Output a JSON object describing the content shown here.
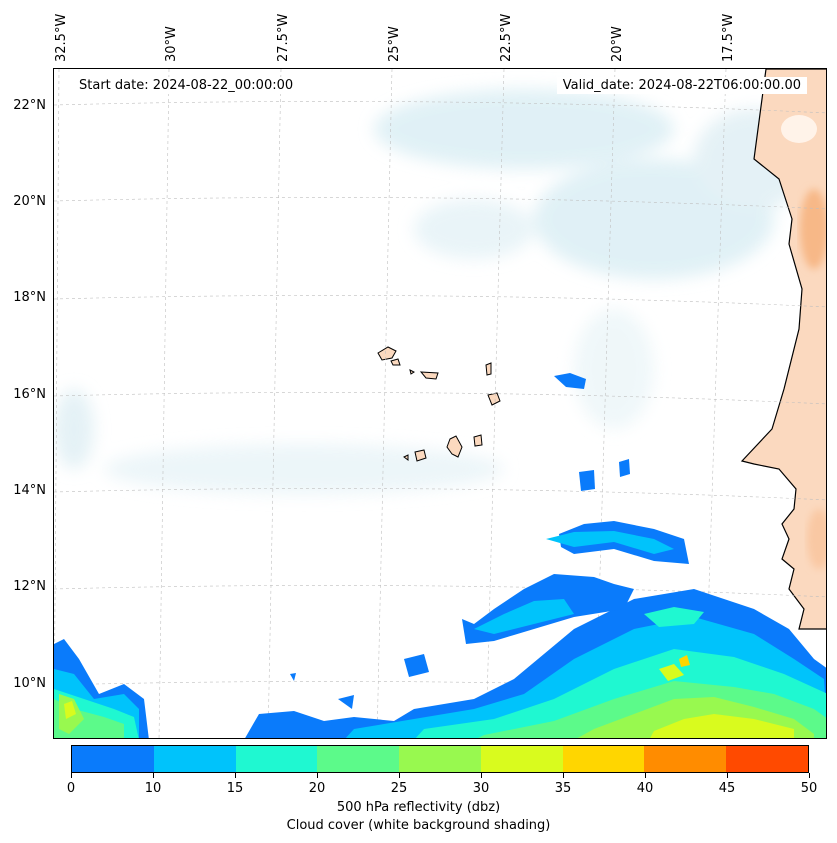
{
  "map": {
    "start_date": "Start date: 2024-08-22_00:00:00",
    "valid_date": "Valid_date: 2024-08-22T06:00:00.00",
    "lon_labels": [
      "32.5°W",
      "30°W",
      "27.5°W",
      "25°W",
      "22.5°W",
      "20°W",
      "17.5°W"
    ],
    "lat_labels": [
      "22°N",
      "20°N",
      "18°N",
      "16°N",
      "14°N",
      "12°N",
      "10°N"
    ],
    "land_color": "#fbd9bf",
    "coast_color": "#000000",
    "cloud_color": "#d6ecf3"
  },
  "colorbar": {
    "ticks": [
      "0",
      "10",
      "15",
      "20",
      "25",
      "30",
      "35",
      "40",
      "45",
      "50"
    ],
    "colors": [
      "#0a7bfb",
      "#00c3fb",
      "#1ff8d1",
      "#5cfa8a",
      "#98f94f",
      "#d9fb1e",
      "#ffd600",
      "#ff8c00",
      "#ff4a00"
    ],
    "label_line1": "500 hPa reflectivity (dbz)",
    "label_line2": "Cloud cover (white background shading)"
  }
}
